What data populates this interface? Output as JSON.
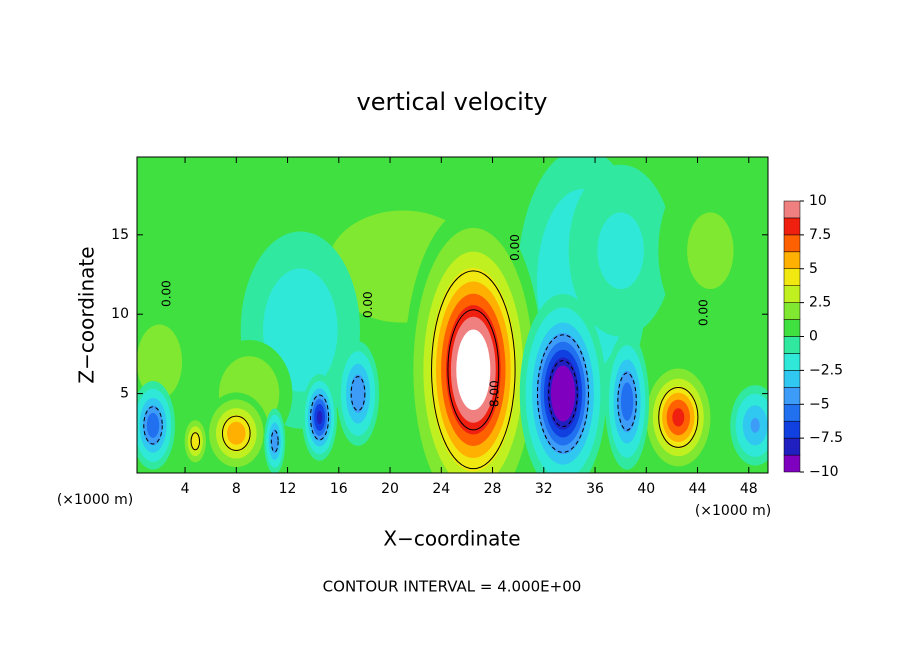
{
  "chart_data": {
    "type": "contour",
    "title": "vertical velocity",
    "x_label": "X−coordinate",
    "y_label": "Z−coordinate",
    "x_unit_left": "(×1000 m)",
    "x_unit_right": "(×1000 m)",
    "footer": "CONTOUR INTERVAL = 4.000E+00",
    "xlim": [
      0.25,
      49.5
    ],
    "ylim": [
      0,
      19.9
    ],
    "xticks": [
      4,
      8,
      12,
      16,
      20,
      24,
      28,
      32,
      36,
      40,
      44,
      48
    ],
    "yticks": [
      5,
      10,
      15
    ],
    "colorbar_lim": [
      -10,
      10
    ],
    "colorbar_ticks": [
      10,
      7.5,
      5,
      2.5,
      0,
      {
        "value": -2.5,
        "label": "−2.5"
      },
      {
        "value": -5,
        "label": "−5"
      },
      {
        "value": -7.5,
        "label": "−7.5"
      },
      {
        "value": -10,
        "label": "−10"
      }
    ],
    "colors": [
      "#8000c0",
      "#2020c0",
      "#1040e0",
      "#2070f0",
      "#3c9cf8",
      "#30c8f0",
      "#30e8d8",
      "#30e8a0",
      "#40e040",
      "#80e830",
      "#c0f020",
      "#f0e810",
      "#ffb000",
      "#ff6000",
      "#f02010",
      "#f08080"
    ],
    "over_color": "#ffffff",
    "contour_levels": [
      -8,
      -4,
      0,
      4,
      8
    ],
    "features": [
      {
        "x": 21,
        "z": 13,
        "rx": 5,
        "rz": 3,
        "value": 2.5
      },
      {
        "x": 13,
        "z": 9,
        "rx": 3,
        "rz": 4,
        "value": -2
      },
      {
        "x": 35,
        "z": 12,
        "rx": 3,
        "rz": 5,
        "value": -2.5
      },
      {
        "x": 38,
        "z": 14,
        "rx": 3,
        "rz": 4,
        "value": -1.5
      },
      {
        "x": 45,
        "z": 14,
        "rx": 3,
        "rz": 4,
        "value": 1.5
      },
      {
        "x": 2,
        "z": 7,
        "rx": 1.5,
        "rz": 2,
        "value": 2.5
      },
      {
        "x": 9,
        "z": 5,
        "rx": 2,
        "rz": 2,
        "value": 2.5
      },
      {
        "x": 26.5,
        "z": 6.5,
        "rx": 2.2,
        "rz": 4.2,
        "value": 12
      },
      {
        "x": 33.5,
        "z": 5,
        "rx": 1.4,
        "rz": 2.6,
        "value": -11
      },
      {
        "x": 42.5,
        "z": 3.5,
        "rx": 1.3,
        "rz": 1.6,
        "value": 8
      },
      {
        "x": 8,
        "z": 2.5,
        "rx": 1.2,
        "rz": 1.2,
        "value": 6
      },
      {
        "x": 4.8,
        "z": 2,
        "rx": 0.5,
        "rz": 0.8,
        "value": 5
      },
      {
        "x": 1.5,
        "z": 3,
        "rx": 0.8,
        "rz": 1.3,
        "value": -6
      },
      {
        "x": 14.5,
        "z": 3.5,
        "rx": 0.6,
        "rz": 1.2,
        "value": -8
      },
      {
        "x": 17.5,
        "z": 5,
        "rx": 0.8,
        "rz": 1.6,
        "value": -5
      },
      {
        "x": 11,
        "z": 2,
        "rx": 0.4,
        "rz": 1,
        "value": -5
      },
      {
        "x": 38.5,
        "z": 4.5,
        "rx": 0.8,
        "rz": 2,
        "value": -6
      },
      {
        "x": 48.5,
        "z": 3,
        "rx": 1,
        "rz": 1.3,
        "value": -4
      }
    ],
    "contour_labels": [
      {
        "value": 0,
        "label": "0.00",
        "x": 2.6,
        "z": 11.3
      },
      {
        "value": 0,
        "label": "0.00",
        "x": 18.3,
        "z": 10.6
      },
      {
        "value": 0,
        "label": "0.00",
        "x": 29.8,
        "z": 14.2
      },
      {
        "value": 0,
        "label": "0.00",
        "x": 44.5,
        "z": 10.1
      },
      {
        "value": 8,
        "label": "8.00",
        "x": 28.2,
        "z": 5
      }
    ]
  }
}
